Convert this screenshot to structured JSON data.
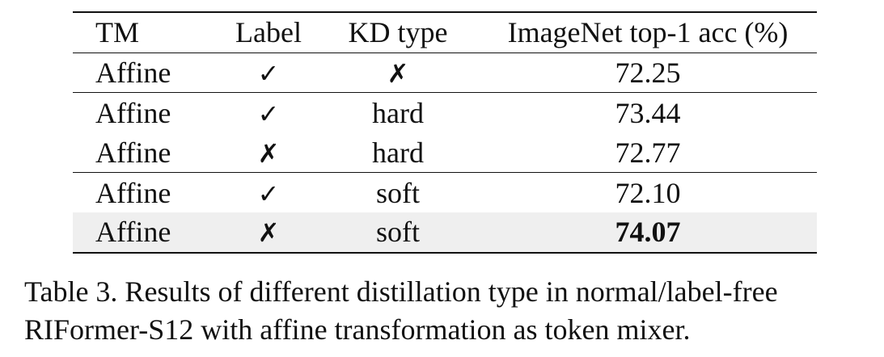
{
  "table": {
    "headers": [
      "TM",
      "Label",
      "KD type",
      "ImageNet top-1 acc (%)"
    ],
    "rows": [
      {
        "tm": "Affine",
        "label": "✓",
        "kd": "✗",
        "acc": "72.25"
      },
      {
        "tm": "Affine",
        "label": "✓",
        "kd": "hard",
        "acc": "73.44"
      },
      {
        "tm": "Affine",
        "label": "✗",
        "kd": "hard",
        "acc": "72.77"
      },
      {
        "tm": "Affine",
        "label": "✓",
        "kd": "soft",
        "acc": "72.10"
      },
      {
        "tm": "Affine",
        "label": "✗",
        "kd": "soft",
        "acc": "74.07"
      }
    ]
  },
  "caption": {
    "line1": "Table 3. Results of different distillation type in normal/label-free",
    "line2": "RIFormer-S12 with affine transformation as token mixer."
  },
  "colors": {
    "highlight_row": "#efefef",
    "text": "#111111"
  }
}
